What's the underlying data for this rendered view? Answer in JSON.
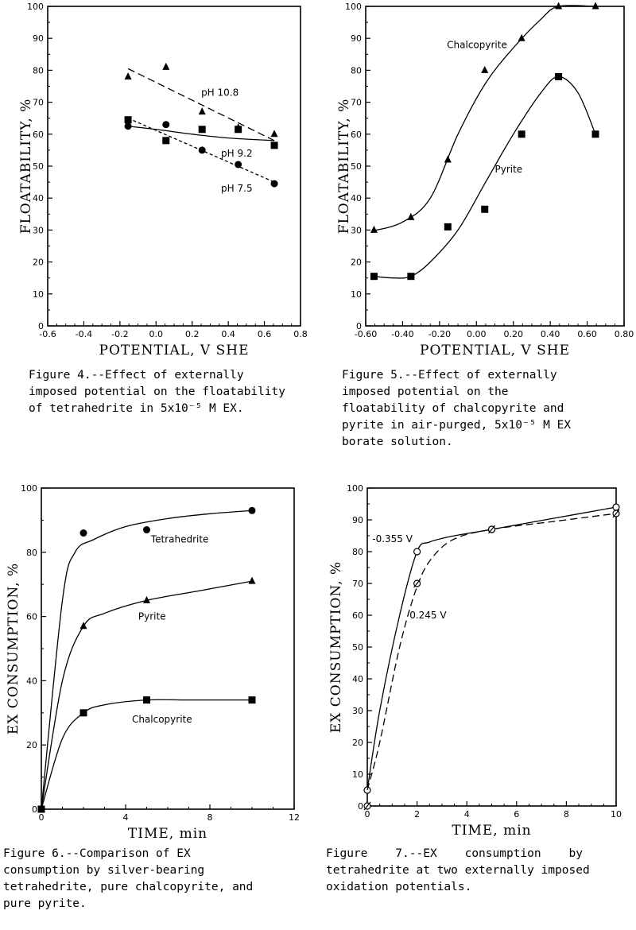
{
  "figures": [
    {
      "id": "fig4",
      "caption": "Figure 4.--Effect of externally\nimposed potential on the floatability\nof tetrahedrite in 5x10⁻⁵ M EX.",
      "chart_data": {
        "type": "scatter",
        "xlabel": "POTENTIAL, V SHE",
        "ylabel": "FLOATABILITY, %",
        "xlim": [
          -0.6,
          0.8
        ],
        "ylim": [
          0,
          100
        ],
        "xticks": [
          "-0.6",
          "-0.4",
          "-0.2",
          "0.0",
          "0.2",
          "0.4",
          "0.6",
          "0.8"
        ],
        "yticks": [
          "0",
          "10",
          "20",
          "30",
          "40",
          "50",
          "60",
          "70",
          "80",
          "90",
          "100"
        ],
        "grid": false,
        "series": [
          {
            "name": "pH 10.8",
            "marker": "triangle",
            "fit": "dashed",
            "points": [
              [
                -0.155,
                78
              ],
              [
                0.055,
                81
              ],
              [
                0.255,
                67
              ],
              [
                0.455,
                62
              ],
              [
                0.655,
                60
              ]
            ],
            "curve": [
              [
                -0.155,
                80.5
              ],
              [
                0.655,
                58
              ]
            ]
          },
          {
            "name": "pH 9.2",
            "marker": "square",
            "fit": "solid",
            "points": [
              [
                -0.155,
                64.5
              ],
              [
                0.055,
                58
              ],
              [
                0.255,
                61.5
              ],
              [
                0.455,
                61.5
              ],
              [
                0.655,
                56.5
              ]
            ],
            "curve": [
              [
                -0.155,
                62.5
              ],
              [
                0.0,
                61.5
              ],
              [
                0.2,
                60
              ],
              [
                0.4,
                58.8
              ],
              [
                0.655,
                58
              ]
            ]
          },
          {
            "name": "pH 7.5",
            "marker": "circle",
            "fit": "short-dashed",
            "points": [
              [
                -0.155,
                62.5
              ],
              [
                0.055,
                63
              ],
              [
                0.255,
                55
              ],
              [
                0.455,
                50.5
              ],
              [
                0.655,
                44.5
              ]
            ],
            "curve": [
              [
                -0.155,
                65
              ],
              [
                0.655,
                45
              ]
            ]
          }
        ]
      }
    },
    {
      "id": "fig5",
      "caption": "Figure 5.--Effect of externally\nimposed potential on the\nfloatability of chalcopyrite and\npyrite in air-purged, 5x10⁻⁵ M EX\nborate solution.",
      "chart_data": {
        "type": "scatter",
        "xlabel": "POTENTIAL, V SHE",
        "ylabel": "FLOATABILITY, %",
        "xlim": [
          -0.6,
          0.8
        ],
        "ylim": [
          0,
          100
        ],
        "xticks": [
          "-0.60",
          "-0.40",
          "-0.20",
          "0.00",
          "0.20",
          "0.40",
          "0.60",
          "0.80"
        ],
        "yticks": [
          "0",
          "10",
          "20",
          "30",
          "40",
          "50",
          "60",
          "70",
          "80",
          "90",
          "100"
        ],
        "grid": false,
        "series": [
          {
            "name": "Chalcopyrite",
            "marker": "triangle",
            "fit": "solid",
            "points": [
              [
                -0.555,
                30
              ],
              [
                -0.355,
                34
              ],
              [
                -0.155,
                52
              ],
              [
                0.045,
                80
              ],
              [
                0.245,
                90
              ],
              [
                0.445,
                100
              ],
              [
                0.645,
                100
              ]
            ],
            "curve": [
              [
                -0.555,
                29.8
              ],
              [
                -0.4,
                32.5
              ],
              [
                -0.25,
                40
              ],
              [
                -0.1,
                60
              ],
              [
                0.05,
                76
              ],
              [
                0.2,
                87
              ],
              [
                0.35,
                96
              ],
              [
                0.445,
                100
              ],
              [
                0.645,
                100
              ]
            ]
          },
          {
            "name": "Pyrite",
            "marker": "square",
            "fit": "solid",
            "points": [
              [
                -0.555,
                15.5
              ],
              [
                -0.355,
                15.5
              ],
              [
                -0.155,
                31
              ],
              [
                0.045,
                36.5
              ],
              [
                0.245,
                60
              ],
              [
                0.445,
                78
              ],
              [
                0.645,
                60
              ]
            ],
            "curve": [
              [
                -0.555,
                15.5
              ],
              [
                -0.45,
                15
              ],
              [
                -0.355,
                15.5
              ],
              [
                -0.25,
                20
              ],
              [
                -0.1,
                30
              ],
              [
                0.05,
                45
              ],
              [
                0.2,
                60
              ],
              [
                0.35,
                73
              ],
              [
                0.445,
                78
              ],
              [
                0.55,
                73
              ],
              [
                0.645,
                60
              ]
            ]
          }
        ],
        "annotations": [
          "Chalcopyrite",
          "Pyrite"
        ]
      }
    },
    {
      "id": "fig6",
      "caption": "Figure 6.--Comparison of EX\nconsumption by silver-bearing\ntetrahedrite, pure chalcopyrite, and\npure pyrite.",
      "chart_data": {
        "type": "line",
        "xlabel": "TIME, min",
        "ylabel": "EX CONSUMPTION, %",
        "xlim": [
          0,
          12
        ],
        "ylim": [
          0,
          100
        ],
        "xticks": [
          "0",
          "4",
          "8",
          "12"
        ],
        "yticks": [
          "0",
          "20",
          "40",
          "60",
          "80",
          "100"
        ],
        "grid": false,
        "series": [
          {
            "name": "Tetrahedrite",
            "marker": "circle",
            "fit": "solid",
            "points": [
              [
                2,
                86
              ],
              [
                5,
                87
              ],
              [
                10,
                93
              ]
            ],
            "curve": [
              [
                0,
                0
              ],
              [
                1,
                65
              ],
              [
                1.6,
                80
              ],
              [
                2.5,
                84
              ],
              [
                4,
                88
              ],
              [
                6,
                90.5
              ],
              [
                8,
                92
              ],
              [
                10,
                93
              ]
            ]
          },
          {
            "name": "Pyrite",
            "marker": "triangle",
            "fit": "solid",
            "points": [
              [
                2,
                57
              ],
              [
                5,
                65
              ],
              [
                10,
                71
              ]
            ],
            "curve": [
              [
                0,
                0
              ],
              [
                1,
                40
              ],
              [
                2,
                57
              ],
              [
                3,
                61
              ],
              [
                5,
                65
              ],
              [
                7.5,
                68
              ],
              [
                10,
                71
              ]
            ]
          },
          {
            "name": "Chalcopyrite",
            "marker": "square",
            "fit": "solid",
            "points": [
              [
                0,
                0
              ],
              [
                2,
                30
              ],
              [
                5,
                34
              ],
              [
                10,
                34
              ]
            ],
            "curve": [
              [
                0,
                0
              ],
              [
                1,
                22
              ],
              [
                2,
                30
              ],
              [
                3,
                32.5
              ],
              [
                5,
                34
              ],
              [
                7,
                34
              ],
              [
                10,
                34
              ]
            ]
          }
        ],
        "annotations": [
          "Tetrahedrite",
          "Pyrite",
          "Chalcopyrite"
        ]
      }
    },
    {
      "id": "fig7",
      "caption": "Figure    7.--EX    consumption    by\ntetrahedrite at two externally imposed\noxidation potentials.",
      "chart_data": {
        "type": "line",
        "xlabel": "TIME, min",
        "ylabel": "EX CONSUMPTION, %",
        "xlim": [
          0,
          10
        ],
        "ylim": [
          0,
          100
        ],
        "xticks": [
          "0",
          "2",
          "4",
          "6",
          "8",
          "10"
        ],
        "yticks": [
          "0",
          "10",
          "20",
          "30",
          "40",
          "50",
          "60",
          "70",
          "80",
          "90",
          "100"
        ],
        "grid": false,
        "series": [
          {
            "name": "-0.355 V",
            "marker": "open-circle",
            "fit": "solid",
            "points": [
              [
                0,
                5
              ],
              [
                2,
                80
              ],
              [
                5,
                87
              ],
              [
                10,
                94
              ]
            ],
            "curve": [
              [
                0,
                5
              ],
              [
                0.5,
                30
              ],
              [
                1.3,
                60
              ],
              [
                2,
                80
              ],
              [
                2.5,
                83
              ],
              [
                3.5,
                85
              ],
              [
                5,
                87
              ],
              [
                7.5,
                90.5
              ],
              [
                10,
                94
              ]
            ]
          },
          {
            "name": "0.245 V",
            "marker": "open-slashed",
            "fit": "dashed",
            "points": [
              [
                0,
                0
              ],
              [
                2,
                70
              ],
              [
                5,
                87
              ],
              [
                10,
                92
              ]
            ],
            "curve": [
              [
                0,
                5
              ],
              [
                0.5,
                20
              ],
              [
                1.3,
                50
              ],
              [
                2,
                69
              ],
              [
                2.6,
                78
              ],
              [
                3.5,
                84
              ],
              [
                5,
                87
              ],
              [
                7.5,
                89.5
              ],
              [
                10,
                92
              ]
            ]
          }
        ],
        "annotations": [
          "-0.355 V",
          "0.245 V"
        ]
      }
    }
  ],
  "annotation_text": {
    "fig4_ph108": "pH 10.8",
    "fig4_ph92": "pH 9.2",
    "fig4_ph75": "pH 7.5",
    "fig5_chalco": "Chalcopyrite",
    "fig5_pyrite": "Pyrite",
    "fig6_tetra": "Tetrahedrite",
    "fig6_pyrite": "Pyrite",
    "fig6_chalco": "Chalcopyrite",
    "fig7_neg": "-0.355 V",
    "fig7_pos": "0.245 V"
  }
}
